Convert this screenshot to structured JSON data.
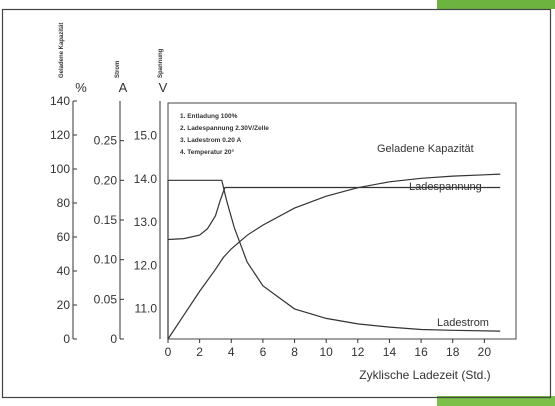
{
  "colors": {
    "accent_green": "#6db33f",
    "ink": "#333333",
    "frame": "#444444"
  },
  "chart_data": {
    "type": "line",
    "x_ticks": [
      0,
      2,
      4,
      6,
      8,
      10,
      12,
      14,
      16,
      18,
      20
    ],
    "xlabel": "Zyklische Ladezeit (Std.)",
    "xlim": [
      0,
      22
    ],
    "axes": [
      {
        "vertical_label": "Geladene Kapazität",
        "unit": "%",
        "ticks": [
          "140",
          "120",
          "100",
          "80",
          "60",
          "40",
          "20",
          "0"
        ],
        "range": [
          0,
          140
        ]
      },
      {
        "vertical_label": "Strom",
        "unit": "A",
        "ticks": [
          "0.25",
          "0.20",
          "0.15",
          "0.10",
          "0.05",
          "0"
        ],
        "range": [
          0,
          0.3
        ]
      },
      {
        "vertical_label": "Spannung",
        "unit": "V",
        "ticks": [
          "15.0",
          "14.0",
          "13.0",
          "12.0",
          "11.0"
        ],
        "range": [
          10.3,
          15.8
        ]
      }
    ],
    "legend": [
      "1. Entladung 100%",
      "2. Ladespannung 2.30V/Zelle",
      "3. Ladestrom 0.20 A",
      "4. Temperatur 20°"
    ],
    "series": [
      {
        "name": "Geladene Kapazität",
        "axis": "%",
        "x": [
          0,
          1,
          2,
          3,
          3.5,
          4,
          5,
          6,
          8,
          10,
          12,
          14,
          16,
          18,
          20,
          21
        ],
        "y": [
          0,
          14,
          28,
          41,
          48,
          53,
          61,
          67,
          77,
          84,
          89,
          92.5,
          94.5,
          95.8,
          96.6,
          97
        ]
      },
      {
        "name": "Ladespannung",
        "axis": "V",
        "x": [
          0,
          1,
          2,
          2.5,
          3,
          3.3,
          3.6,
          4.5,
          6,
          10,
          15,
          21
        ],
        "y": [
          12.6,
          12.62,
          12.7,
          12.85,
          13.15,
          13.5,
          13.8,
          13.8,
          13.8,
          13.8,
          13.8,
          13.8
        ]
      },
      {
        "name": "Ladestrom",
        "axis": "A",
        "x": [
          0,
          3.4,
          3.7,
          4.2,
          5,
          6,
          8,
          10,
          12,
          14,
          16,
          18,
          21
        ],
        "y": [
          0.2,
          0.2,
          0.175,
          0.14,
          0.097,
          0.067,
          0.038,
          0.026,
          0.019,
          0.015,
          0.012,
          0.011,
          0.01
        ]
      }
    ]
  }
}
